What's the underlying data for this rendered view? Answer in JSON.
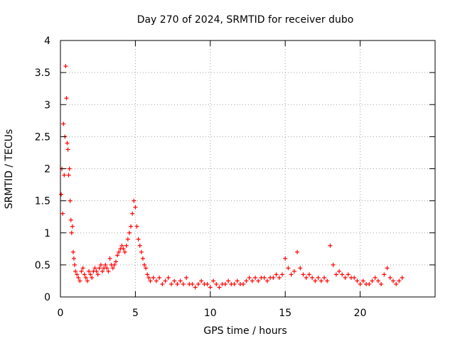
{
  "chart_data": {
    "type": "scatter",
    "title": "Day 270 of 2024, SRMTID for receiver dubo",
    "xlabel": "GPS time / hours",
    "ylabel": "SRMTID / TECUs",
    "xlim": [
      0,
      25
    ],
    "ylim": [
      0,
      4
    ],
    "xticks": [
      0,
      5,
      10,
      15,
      20
    ],
    "xtick_labels": [
      "0",
      "5",
      "10",
      "15",
      "20"
    ],
    "yticks": [
      0,
      0.5,
      1,
      1.5,
      2,
      2.5,
      3,
      3.5,
      4
    ],
    "ytick_labels": [
      "0",
      "0.5",
      "1",
      "1.5",
      "2",
      "2.5",
      "3",
      "3.5",
      "4"
    ],
    "grid": true,
    "marker": "+",
    "series": [
      {
        "name": "SRMTID",
        "color": "#ff0000",
        "x": [
          0.05,
          0.1,
          0.15,
          0.2,
          0.25,
          0.3,
          0.35,
          0.4,
          0.45,
          0.5,
          0.55,
          0.6,
          0.65,
          0.7,
          0.75,
          0.8,
          0.85,
          0.9,
          0.95,
          1.0,
          1.1,
          1.2,
          1.3,
          1.4,
          1.5,
          1.6,
          1.7,
          1.8,
          1.9,
          2.0,
          2.1,
          2.2,
          2.3,
          2.4,
          2.5,
          2.6,
          2.7,
          2.8,
          2.9,
          3.0,
          3.1,
          3.2,
          3.3,
          3.4,
          3.5,
          3.6,
          3.7,
          3.8,
          3.9,
          4.0,
          4.1,
          4.2,
          4.3,
          4.4,
          4.5,
          4.6,
          4.7,
          4.8,
          4.9,
          5.0,
          5.1,
          5.2,
          5.3,
          5.4,
          5.5,
          5.6,
          5.7,
          5.8,
          5.9,
          6.0,
          6.2,
          6.4,
          6.6,
          6.8,
          7.0,
          7.2,
          7.4,
          7.6,
          7.8,
          8.0,
          8.2,
          8.4,
          8.6,
          8.8,
          9.0,
          9.2,
          9.4,
          9.6,
          9.8,
          10.0,
          10.2,
          10.4,
          10.6,
          10.8,
          11.0,
          11.2,
          11.4,
          11.6,
          11.8,
          12.0,
          12.2,
          12.4,
          12.6,
          12.8,
          13.0,
          13.2,
          13.4,
          13.6,
          13.8,
          14.0,
          14.2,
          14.4,
          14.6,
          14.8,
          15.0,
          15.2,
          15.4,
          15.6,
          15.8,
          16.0,
          16.2,
          16.4,
          16.6,
          16.8,
          17.0,
          17.2,
          17.4,
          17.6,
          17.8,
          18.0,
          18.2,
          18.4,
          18.6,
          18.8,
          19.0,
          19.2,
          19.4,
          19.6,
          19.8,
          20.0,
          20.2,
          20.4,
          20.6,
          20.8,
          21.0,
          21.2,
          21.4,
          21.6,
          21.8,
          22.0,
          22.2,
          22.4,
          22.6,
          22.8
        ],
        "y": [
          1.6,
          2.0,
          1.3,
          2.7,
          1.9,
          2.5,
          3.6,
          3.1,
          2.4,
          2.3,
          1.9,
          2.0,
          1.5,
          1.2,
          1.0,
          1.1,
          0.7,
          0.6,
          0.5,
          0.4,
          0.35,
          0.3,
          0.25,
          0.4,
          0.45,
          0.35,
          0.3,
          0.25,
          0.4,
          0.35,
          0.3,
          0.4,
          0.45,
          0.4,
          0.35,
          0.45,
          0.5,
          0.4,
          0.45,
          0.5,
          0.45,
          0.4,
          0.6,
          0.5,
          0.45,
          0.5,
          0.55,
          0.65,
          0.7,
          0.75,
          0.8,
          0.75,
          0.7,
          0.8,
          0.9,
          1.0,
          1.1,
          1.3,
          1.5,
          1.4,
          1.1,
          0.9,
          0.8,
          0.7,
          0.6,
          0.5,
          0.45,
          0.35,
          0.3,
          0.25,
          0.3,
          0.25,
          0.3,
          0.2,
          0.25,
          0.3,
          0.2,
          0.25,
          0.2,
          0.25,
          0.2,
          0.3,
          0.2,
          0.2,
          0.15,
          0.2,
          0.25,
          0.2,
          0.2,
          0.15,
          0.25,
          0.2,
          0.15,
          0.2,
          0.2,
          0.25,
          0.2,
          0.2,
          0.25,
          0.2,
          0.2,
          0.25,
          0.3,
          0.25,
          0.3,
          0.25,
          0.3,
          0.3,
          0.25,
          0.3,
          0.3,
          0.35,
          0.3,
          0.35,
          0.6,
          0.45,
          0.35,
          0.4,
          0.7,
          0.45,
          0.35,
          0.3,
          0.35,
          0.3,
          0.25,
          0.3,
          0.25,
          0.3,
          0.25,
          0.8,
          0.5,
          0.35,
          0.4,
          0.35,
          0.3,
          0.35,
          0.3,
          0.3,
          0.25,
          0.2,
          0.25,
          0.2,
          0.2,
          0.25,
          0.3,
          0.25,
          0.2,
          0.35,
          0.45,
          0.3,
          0.25,
          0.2,
          0.25,
          0.3
        ]
      }
    ]
  }
}
